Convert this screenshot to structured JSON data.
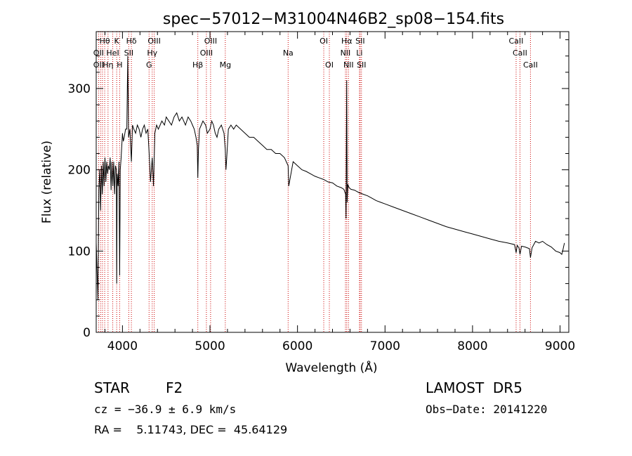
{
  "chart_data": {
    "type": "line",
    "title": "spec−57012−M31004N46B2_sp08−154.fits",
    "xlabel": "Wavelength (Å)",
    "ylabel": "Flux (relative)",
    "xlim": [
      3700,
      9100
    ],
    "ylim": [
      0,
      370
    ],
    "x_ticks": [
      4000,
      5000,
      6000,
      7000,
      8000,
      9000
    ],
    "y_ticks": [
      0,
      100,
      200,
      300
    ],
    "series": [
      {
        "x": [
          3700,
          3720,
          3730,
          3740,
          3750,
          3760,
          3770,
          3780,
          3790,
          3800,
          3810,
          3820,
          3830,
          3840,
          3850,
          3860,
          3870,
          3880,
          3890,
          3900,
          3910,
          3920,
          3930,
          3934,
          3940,
          3950,
          3960,
          3968,
          3975,
          3985,
          4000,
          4010,
          4020,
          4035,
          4050,
          4060,
          4070,
          4085,
          4102,
          4115,
          4130,
          4150,
          4170,
          4190,
          4210,
          4230,
          4250,
          4270,
          4290,
          4305,
          4320,
          4340,
          4355,
          4370,
          4390,
          4410,
          4430,
          4450,
          4480,
          4500,
          4530,
          4560,
          4590,
          4620,
          4650,
          4680,
          4700,
          4720,
          4750,
          4780,
          4800,
          4820,
          4840,
          4855,
          4861,
          4868,
          4880,
          4900,
          4920,
          4950,
          4970,
          5000,
          5020,
          5040,
          5060,
          5080,
          5100,
          5130,
          5160,
          5175,
          5183,
          5192,
          5210,
          5240,
          5270,
          5300,
          5350,
          5400,
          5450,
          5500,
          5550,
          5600,
          5650,
          5700,
          5750,
          5800,
          5850,
          5893,
          5900,
          5950,
          6000,
          6050,
          6100,
          6150,
          6200,
          6250,
          6300,
          6350,
          6400,
          6450,
          6500,
          6530,
          6550,
          6555,
          6562,
          6568,
          6575,
          6590,
          6610,
          6650,
          6700,
          6750,
          6800,
          6850,
          6900,
          6950,
          7000,
          7100,
          7200,
          7300,
          7400,
          7500,
          7600,
          7700,
          7800,
          7900,
          8000,
          8100,
          8200,
          8300,
          8400,
          8480,
          8498,
          8510,
          8530,
          8542,
          8560,
          8600,
          8650,
          8662,
          8680,
          8720,
          8760,
          8800,
          8850,
          8900,
          8950,
          9000,
          9020,
          9030,
          9040,
          9050
        ],
        "y": [
          110,
          40,
          175,
          200,
          150,
          205,
          170,
          210,
          180,
          215,
          185,
          210,
          195,
          205,
          200,
          215,
          175,
          210,
          180,
          210,
          170,
          205,
          200,
          60,
          195,
          180,
          210,
          70,
          200,
          215,
          245,
          235,
          240,
          250,
          250,
          340,
          240,
          250,
          210,
          255,
          250,
          245,
          255,
          250,
          240,
          250,
          255,
          245,
          250,
          220,
          185,
          215,
          180,
          245,
          255,
          250,
          255,
          260,
          255,
          265,
          260,
          255,
          265,
          270,
          260,
          265,
          260,
          255,
          265,
          260,
          255,
          250,
          240,
          230,
          190,
          225,
          250,
          255,
          260,
          255,
          245,
          250,
          260,
          255,
          245,
          240,
          250,
          255,
          245,
          225,
          200,
          215,
          250,
          255,
          250,
          255,
          250,
          245,
          240,
          240,
          235,
          230,
          225,
          225,
          220,
          220,
          215,
          205,
          180,
          210,
          205,
          200,
          198,
          195,
          192,
          190,
          188,
          185,
          184,
          180,
          178,
          176,
          170,
          140,
          310,
          160,
          182,
          178,
          176,
          175,
          172,
          170,
          168,
          165,
          162,
          160,
          158,
          154,
          150,
          146,
          142,
          138,
          134,
          130,
          127,
          124,
          121,
          118,
          115,
          112,
          110,
          108,
          98,
          107,
          104,
          96,
          106,
          105,
          103,
          92,
          104,
          112,
          110,
          112,
          108,
          105,
          100,
          98,
          96,
          100,
          105,
          110
        ]
      }
    ],
    "line_labels": [
      {
        "label": "Hθ",
        "x": 3797,
        "row": 0
      },
      {
        "label": "K",
        "x": 3934,
        "row": 0
      },
      {
        "label": "Hδ",
        "x": 4102,
        "row": 0
      },
      {
        "label": "OIII",
        "x": 4363,
        "row": 0
      },
      {
        "label": "OIII",
        "x": 5007,
        "row": 0
      },
      {
        "label": "OI",
        "x": 6300,
        "row": 0
      },
      {
        "label": "Hα",
        "x": 6563,
        "row": 0
      },
      {
        "label": "SII",
        "x": 6716,
        "row": 0
      },
      {
        "label": "CaII",
        "x": 8498,
        "row": 0
      },
      {
        "label": "OII",
        "x": 3727,
        "row": 1
      },
      {
        "label": "HeI",
        "x": 3889,
        "row": 1
      },
      {
        "label": "SII",
        "x": 4072,
        "row": 1
      },
      {
        "label": "Hγ",
        "x": 4340,
        "row": 1
      },
      {
        "label": "OIII",
        "x": 4959,
        "row": 1
      },
      {
        "label": "Na",
        "x": 5893,
        "row": 1
      },
      {
        "label": "NII",
        "x": 6548,
        "row": 1
      },
      {
        "label": "Li",
        "x": 6708,
        "row": 1
      },
      {
        "label": "CaII",
        "x": 8542,
        "row": 1
      },
      {
        "label": "OII",
        "x": 3727,
        "row": 2
      },
      {
        "label": "Hη",
        "x": 3835,
        "row": 2
      },
      {
        "label": "H",
        "x": 3968,
        "row": 2
      },
      {
        "label": "G",
        "x": 4304,
        "row": 2
      },
      {
        "label": "Hβ",
        "x": 4861,
        "row": 2
      },
      {
        "label": "Mg",
        "x": 5175,
        "row": 2
      },
      {
        "label": "OI",
        "x": 6364,
        "row": 2
      },
      {
        "label": "NII",
        "x": 6583,
        "row": 2
      },
      {
        "label": "SII",
        "x": 6731,
        "row": 2
      },
      {
        "label": "CaII",
        "x": 8662,
        "row": 2
      }
    ],
    "marker_lines": [
      3727,
      3750,
      3771,
      3797,
      3835,
      3889,
      3934,
      3968,
      4072,
      4102,
      4304,
      4340,
      4363,
      4861,
      4959,
      5007,
      5175,
      5893,
      6300,
      6364,
      6548,
      6563,
      6583,
      6708,
      6716,
      6731,
      8498,
      8542,
      8662
    ],
    "colors": {
      "spectrum": "#000000",
      "marker": "#cc0000",
      "axes": "#000000"
    }
  },
  "info": {
    "class_label": "STAR",
    "subclass": "F2",
    "survey": "LAMOST  DR5",
    "cz": "cz = −36.9 ± 6.9 km/s",
    "obs_date": "Obs−Date: 20141220",
    "radec": "RA =    5.11743, DEC =  45.64129"
  }
}
